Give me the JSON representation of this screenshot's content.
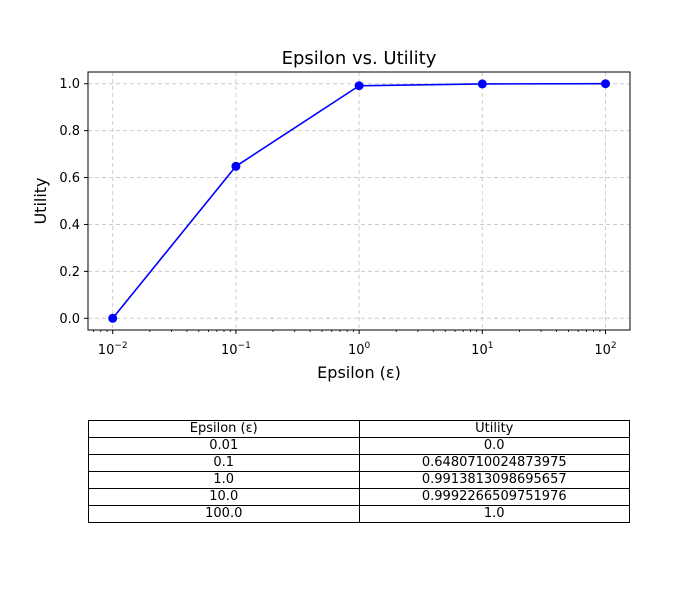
{
  "chart_data": {
    "type": "line",
    "title": "Epsilon vs. Utility",
    "xlabel": "Epsilon (ε)",
    "ylabel": "Utility",
    "xscale": "log",
    "xlim": [
      0.0063,
      158
    ],
    "ylim": [
      -0.05,
      1.05
    ],
    "grid": true,
    "color": "#0000ff",
    "x": [
      0.01,
      0.1,
      1.0,
      10.0,
      100.0
    ],
    "y": [
      0.0,
      0.6480710024873975,
      0.9913813098695657,
      0.9992266509751976,
      1.0
    ],
    "x_ticks": [
      {
        "value": 0.01,
        "base": "10",
        "exp": "−2"
      },
      {
        "value": 0.1,
        "base": "10",
        "exp": "−1"
      },
      {
        "value": 1,
        "base": "10",
        "exp": "0"
      },
      {
        "value": 10,
        "base": "10",
        "exp": "1"
      },
      {
        "value": 100,
        "base": "10",
        "exp": "2"
      }
    ],
    "y_ticks": [
      "0.0",
      "0.2",
      "0.4",
      "0.6",
      "0.8",
      "1.0"
    ]
  },
  "table": {
    "headers": [
      "Epsilon (ε)",
      "Utility"
    ],
    "rows": [
      [
        "0.01",
        "0.0"
      ],
      [
        "0.1",
        "0.6480710024873975"
      ],
      [
        "1.0",
        "0.9913813098695657"
      ],
      [
        "10.0",
        "0.9992266509751976"
      ],
      [
        "100.0",
        "1.0"
      ]
    ]
  }
}
